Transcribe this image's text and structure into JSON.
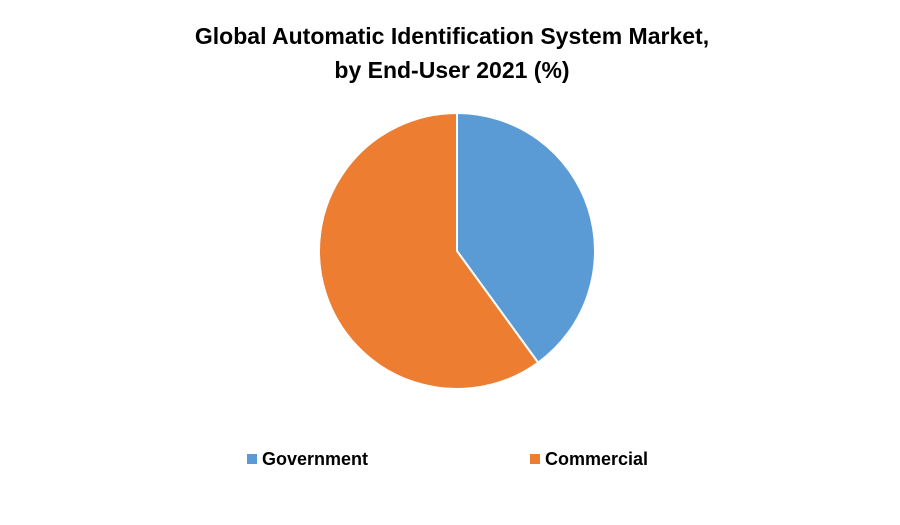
{
  "chart_data": {
    "type": "pie",
    "title": [
      "Global Automatic Identification System Market,",
      "by End-User 2021 (%)"
    ],
    "categories": [
      "Government",
      "Commercial"
    ],
    "values": [
      40,
      60
    ],
    "colors": [
      "#5b9bd5",
      "#ed7d31"
    ],
    "legend": "bottom"
  }
}
